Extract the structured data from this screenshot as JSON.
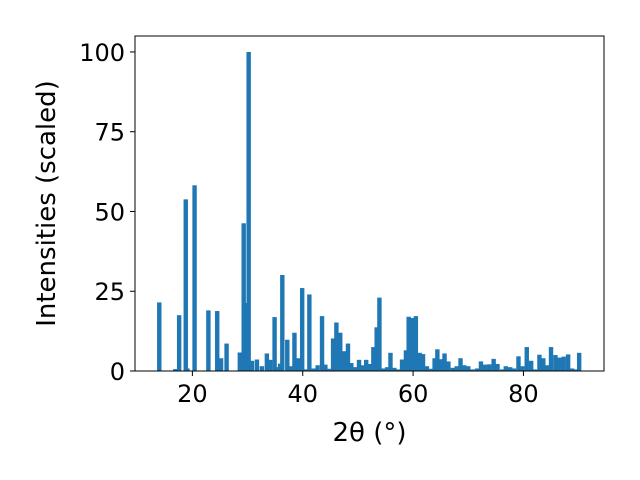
{
  "chart_data": {
    "type": "bar",
    "xlabel": "2θ (°)",
    "ylabel": "Intensities (scaled)",
    "xlim": [
      9.6,
      94.6
    ],
    "ylim": [
      0,
      105
    ],
    "xticks": [
      20,
      40,
      60,
      80
    ],
    "yticks": [
      0,
      25,
      50,
      75,
      100
    ],
    "bar_color": "#1f77b4",
    "bar_width": 0.8,
    "x": [
      14.0,
      16.9,
      17.6,
      18.8,
      19.1,
      20.4,
      22.9,
      24.5,
      25.2,
      26.2,
      28.6,
      29.3,
      29.6,
      30.2,
      30.8,
      31.7,
      32.6,
      33.5,
      34.1,
      34.9,
      35.4,
      35.9,
      36.3,
      37.2,
      38.0,
      38.5,
      39.2,
      39.9,
      40.5,
      41.2,
      42.0,
      42.7,
      43.5,
      44.1,
      44.7,
      45.5,
      46.1,
      46.8,
      47.5,
      48.2,
      48.8,
      49.5,
      50.2,
      50.9,
      51.5,
      52.2,
      52.8,
      53.4,
      53.9,
      54.6,
      55.3,
      55.9,
      56.6,
      57.3,
      58.0,
      58.7,
      59.2,
      59.9,
      60.5,
      61.2,
      61.8,
      62.5,
      63.3,
      63.9,
      64.4,
      65.0,
      65.7,
      66.4,
      67.2,
      67.9,
      68.6,
      69.3,
      70.0,
      70.8,
      71.6,
      72.3,
      73.0,
      73.8,
      74.6,
      75.3,
      76.1,
      76.8,
      77.6,
      78.3,
      79.1,
      79.8,
      80.6,
      81.4,
      82.1,
      82.9,
      83.6,
      84.3,
      85.0,
      85.8,
      86.5,
      87.3,
      88.1,
      88.8,
      89.4,
      90.1
    ],
    "values": [
      21.5,
      0.6,
      17.5,
      53.8,
      0.8,
      58.2,
      19.0,
      18.8,
      4.0,
      8.6,
      5.8,
      46.3,
      21.3,
      100.0,
      3.2,
      3.6,
      1.5,
      5.5,
      3.5,
      16.9,
      1.2,
      2.3,
      30.1,
      9.8,
      1.5,
      12.0,
      4.0,
      26.0,
      0.5,
      24.0,
      0.8,
      1.8,
      17.2,
      2.0,
      0.7,
      10.2,
      15.2,
      12.0,
      6.2,
      8.6,
      2.5,
      1.2,
      3.5,
      1.8,
      3.5,
      2.2,
      7.5,
      13.7,
      23.0,
      0.8,
      1.2,
      5.7,
      1.0,
      0.5,
      3.6,
      6.5,
      17.0,
      16.6,
      17.2,
      5.7,
      5.3,
      1.5,
      0.7,
      4.0,
      6.8,
      3.7,
      5.5,
      3.0,
      1.0,
      1.5,
      4.0,
      1.8,
      1.5,
      0.5,
      0.8,
      3.0,
      2.0,
      2.1,
      3.8,
      2.2,
      0.5,
      1.5,
      1.2,
      0.8,
      4.6,
      1.5,
      7.5,
      3.2,
      0.5,
      5.1,
      4.0,
      1.8,
      7.5,
      5.0,
      4.2,
      4.5,
      5.2,
      0.8,
      0.5,
      5.7
    ]
  }
}
